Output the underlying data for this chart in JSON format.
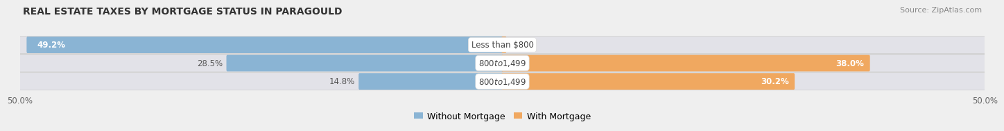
{
  "title": "REAL ESTATE TAXES BY MORTGAGE STATUS IN PARAGOULD",
  "source": "Source: ZipAtlas.com",
  "rows": [
    {
      "label": "Less than $800",
      "without_mortgage": 49.2,
      "with_mortgage": 0.33,
      "wom_label_inside": true,
      "wm_label_inside": false
    },
    {
      "label": "$800 to $1,499",
      "without_mortgage": 28.5,
      "with_mortgage": 38.0,
      "wom_label_inside": false,
      "wm_label_inside": true
    },
    {
      "label": "$800 to $1,499",
      "without_mortgage": 14.8,
      "with_mortgage": 30.2,
      "wom_label_inside": false,
      "wm_label_inside": true
    }
  ],
  "color_without": "#8ab4d4",
  "color_with": "#f0a860",
  "color_bg_bar": "#e2e2e8",
  "bar_height": 0.72,
  "xlim_left": -50,
  "xlim_right": 50,
  "x_tick_labels": [
    "50.0%",
    "50.0%"
  ],
  "background_color": "#efefef",
  "title_fontsize": 10,
  "source_fontsize": 8,
  "legend_fontsize": 9,
  "value_fontsize": 8.5,
  "label_fontsize": 8.5
}
